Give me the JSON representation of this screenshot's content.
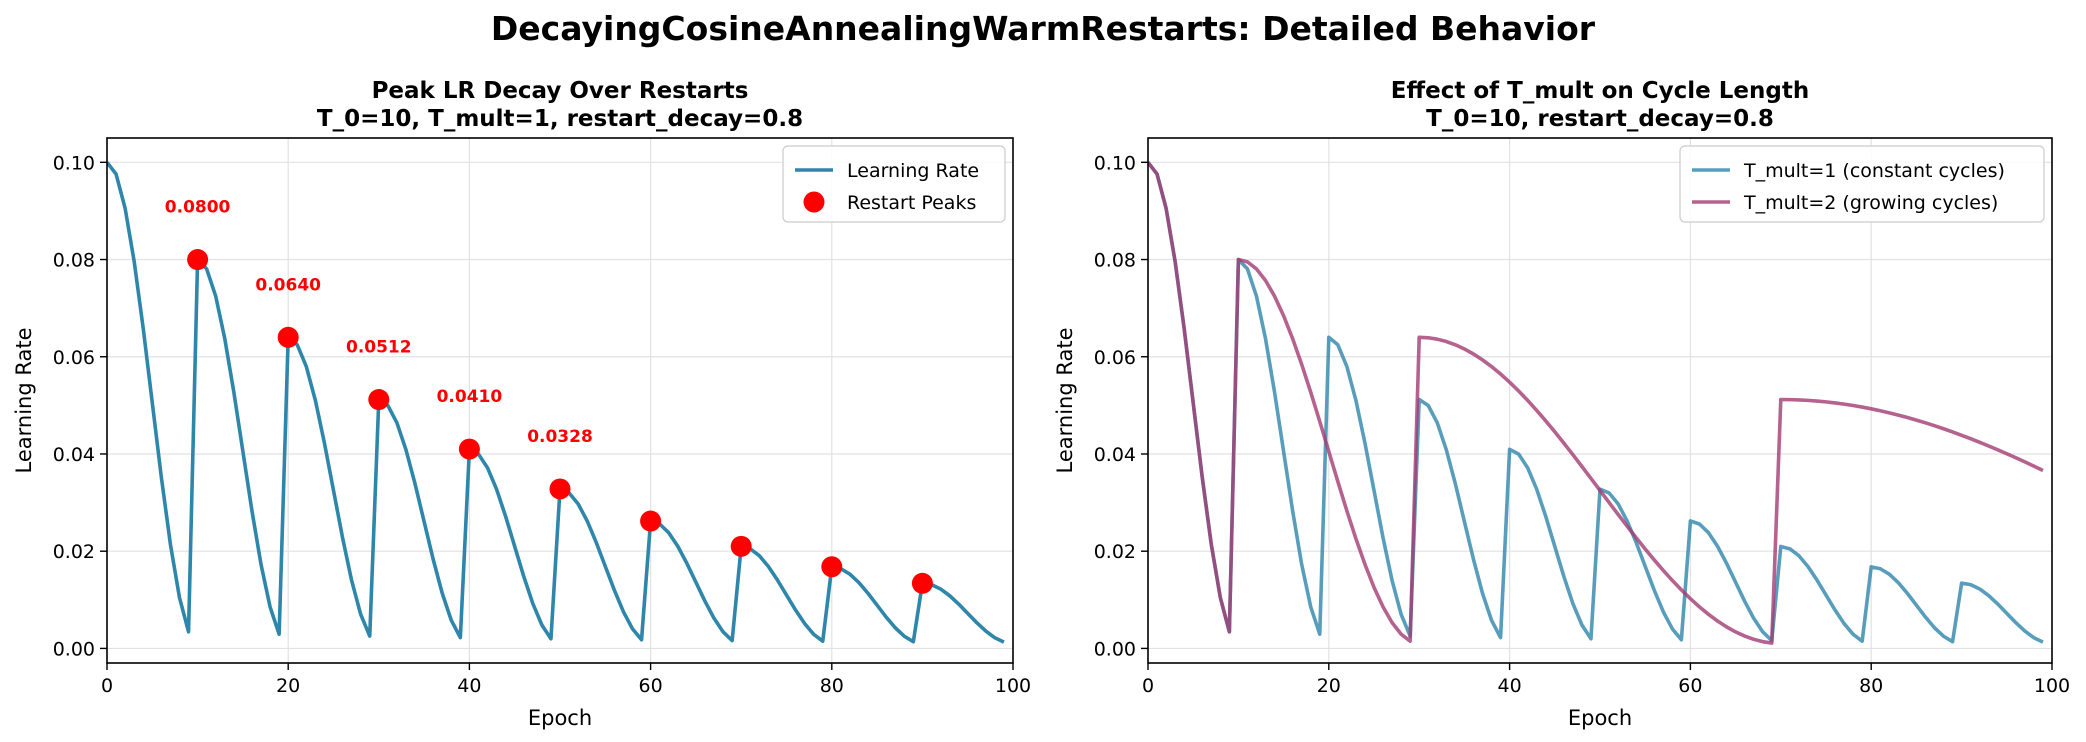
{
  "figure": {
    "suptitle": "DecayingCosineAnnealingWarmRestarts: Detailed Behavior"
  },
  "chart_data": [
    {
      "type": "line",
      "title_line1": "Peak LR Decay Over Restarts",
      "title_line2": "T_0=10, T_mult=1, restart_decay=0.8",
      "xlabel": "Epoch",
      "ylabel": "Learning Rate",
      "xlim": [
        0,
        100
      ],
      "ylim": [
        -0.003,
        0.105
      ],
      "xticks": [
        0,
        20,
        40,
        60,
        80,
        100
      ],
      "xtick_labels": [
        "0",
        "20",
        "40",
        "60",
        "80",
        "100"
      ],
      "yticks": [
        0.0,
        0.02,
        0.04,
        0.06,
        0.08,
        0.1
      ],
      "ytick_labels": [
        "0.00",
        "0.02",
        "0.04",
        "0.06",
        "0.08",
        "0.10"
      ],
      "grid": true,
      "legend_position": "top-right",
      "series": [
        {
          "name": "Learning Rate",
          "color": "#2e86ab",
          "style": "line",
          "generator": {
            "eta_max": 0.1,
            "eta_min": 0.001,
            "T_0": 10,
            "T_mult": 1,
            "restart_decay": 0.8,
            "epochs": 100
          }
        },
        {
          "name": "Restart Peaks",
          "color": "#ff0000",
          "style": "scatter",
          "x": [
            10,
            20,
            30,
            40,
            50,
            60,
            70,
            80,
            90
          ],
          "y": [
            0.08,
            0.064,
            0.0512,
            0.041,
            0.0328,
            0.0262,
            0.021,
            0.0168,
            0.0134
          ]
        }
      ],
      "annotations": [
        {
          "text": "0.0800",
          "x": 10,
          "y": 0.08
        },
        {
          "text": "0.0640",
          "x": 20,
          "y": 0.064
        },
        {
          "text": "0.0512",
          "x": 30,
          "y": 0.0512
        },
        {
          "text": "0.0410",
          "x": 40,
          "y": 0.041
        },
        {
          "text": "0.0328",
          "x": 50,
          "y": 0.0328
        }
      ]
    },
    {
      "type": "line",
      "title_line1": "Effect of T_mult on Cycle Length",
      "title_line2": "T_0=10, restart_decay=0.8",
      "xlabel": "Epoch",
      "ylabel": "Learning Rate",
      "xlim": [
        0,
        100
      ],
      "ylim": [
        -0.003,
        0.105
      ],
      "xticks": [
        0,
        20,
        40,
        60,
        80,
        100
      ],
      "xtick_labels": [
        "0",
        "20",
        "40",
        "60",
        "80",
        "100"
      ],
      "yticks": [
        0.0,
        0.02,
        0.04,
        0.06,
        0.08,
        0.1
      ],
      "ytick_labels": [
        "0.00",
        "0.02",
        "0.04",
        "0.06",
        "0.08",
        "0.10"
      ],
      "grid": true,
      "legend_position": "top-right",
      "series": [
        {
          "name": "T_mult=1 (constant cycles)",
          "color": "#2e86ab",
          "style": "line",
          "generator": {
            "eta_max": 0.1,
            "eta_min": 0.001,
            "T_0": 10,
            "T_mult": 1,
            "restart_decay": 0.8,
            "epochs": 100
          }
        },
        {
          "name": "T_mult=2 (growing cycles)",
          "color": "#a23b72",
          "style": "line",
          "generator": {
            "eta_max": 0.1,
            "eta_min": 0.001,
            "T_0": 10,
            "T_mult": 2,
            "restart_decay": 0.8,
            "epochs": 100
          }
        }
      ]
    }
  ]
}
